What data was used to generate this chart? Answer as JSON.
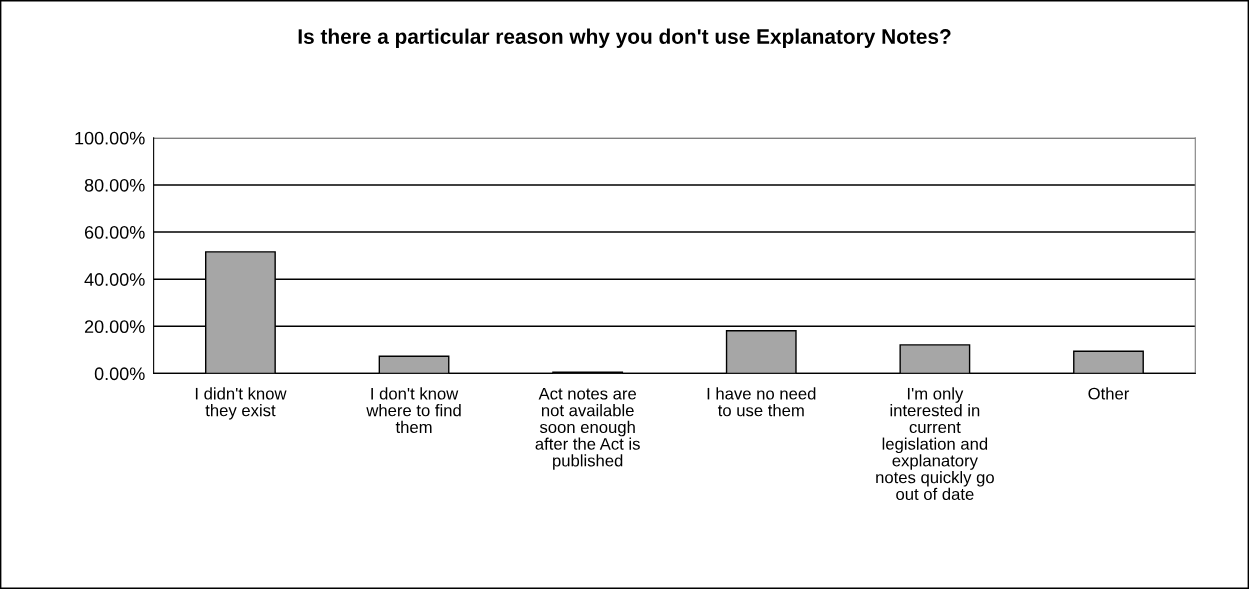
{
  "chart_data": {
    "type": "bar",
    "title": "Is there a particular reason why you don't use Explanatory Notes?",
    "categories": [
      "I didn't know\nthey exist",
      "I don't know\nwhere to find\nthem",
      "Act notes are\nnot available\nsoon enough\nafter the Act is\npublished",
      "I have no need\nto use them",
      "I'm only\ninterested in\ncurrent\nlegislation and\nexplanatory\nnotes quickly go\nout of date",
      "Other"
    ],
    "values": [
      51.6,
      7.3,
      0.5,
      18.1,
      12.1,
      9.4
    ],
    "color": "#a6a6a6",
    "ylim": [
      0,
      100
    ],
    "yticks": [
      {
        "value": 0,
        "label": "0.00%"
      },
      {
        "value": 20,
        "label": "20.00%"
      },
      {
        "value": 40,
        "label": "40.00%"
      },
      {
        "value": 60,
        "label": "60.00%"
      },
      {
        "value": 80,
        "label": "80.00%"
      },
      {
        "value": 100,
        "label": "100.00%"
      }
    ],
    "grid": "y"
  }
}
